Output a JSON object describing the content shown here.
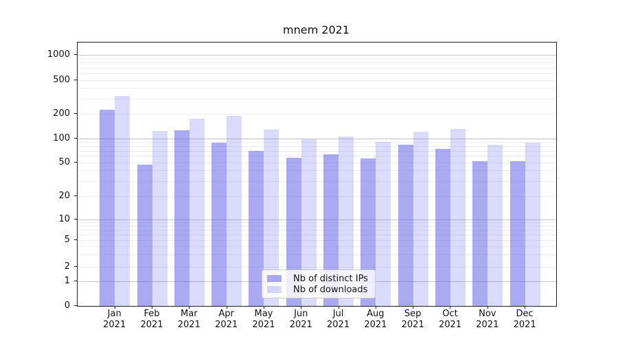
{
  "title": "mnem 2021",
  "chart_data": {
    "type": "bar",
    "title": "mnem 2021",
    "categories": [
      "Jan 2021",
      "Feb 2021",
      "Mar 2021",
      "Apr 2021",
      "May 2021",
      "Jun 2021",
      "Jul 2021",
      "Aug 2021",
      "Sep 2021",
      "Oct 2021",
      "Nov 2021",
      "Dec 2021"
    ],
    "series": [
      {
        "name": "Nb of distinct IPs",
        "fill": "rgba(85,85,231,0.5)",
        "values": [
          225,
          47,
          125,
          88,
          70,
          58,
          64,
          56,
          84,
          75,
          52,
          52
        ]
      },
      {
        "name": "Nb of downloads",
        "fill": "rgba(85,85,231,0.22)",
        "values": [
          325,
          124,
          175,
          190,
          128,
          99,
          105,
          90,
          121,
          131,
          84,
          88
        ]
      }
    ],
    "xlabel": "",
    "ylabel": "",
    "y_axis": {
      "scale": "symlog",
      "ticks": [
        1000,
        500,
        200,
        100,
        50,
        20,
        10,
        5,
        2,
        1,
        0
      ],
      "ylim": [
        0,
        1300
      ],
      "grid": "on"
    },
    "legend": {
      "position": "lower-center-inside",
      "entries": [
        "Nb of distinct IPs",
        "Nb of downloads"
      ]
    },
    "colors": {
      "bar_base": "#5555e7",
      "grid_major": "#c6c6c6",
      "grid_minor": "#ededed"
    }
  }
}
